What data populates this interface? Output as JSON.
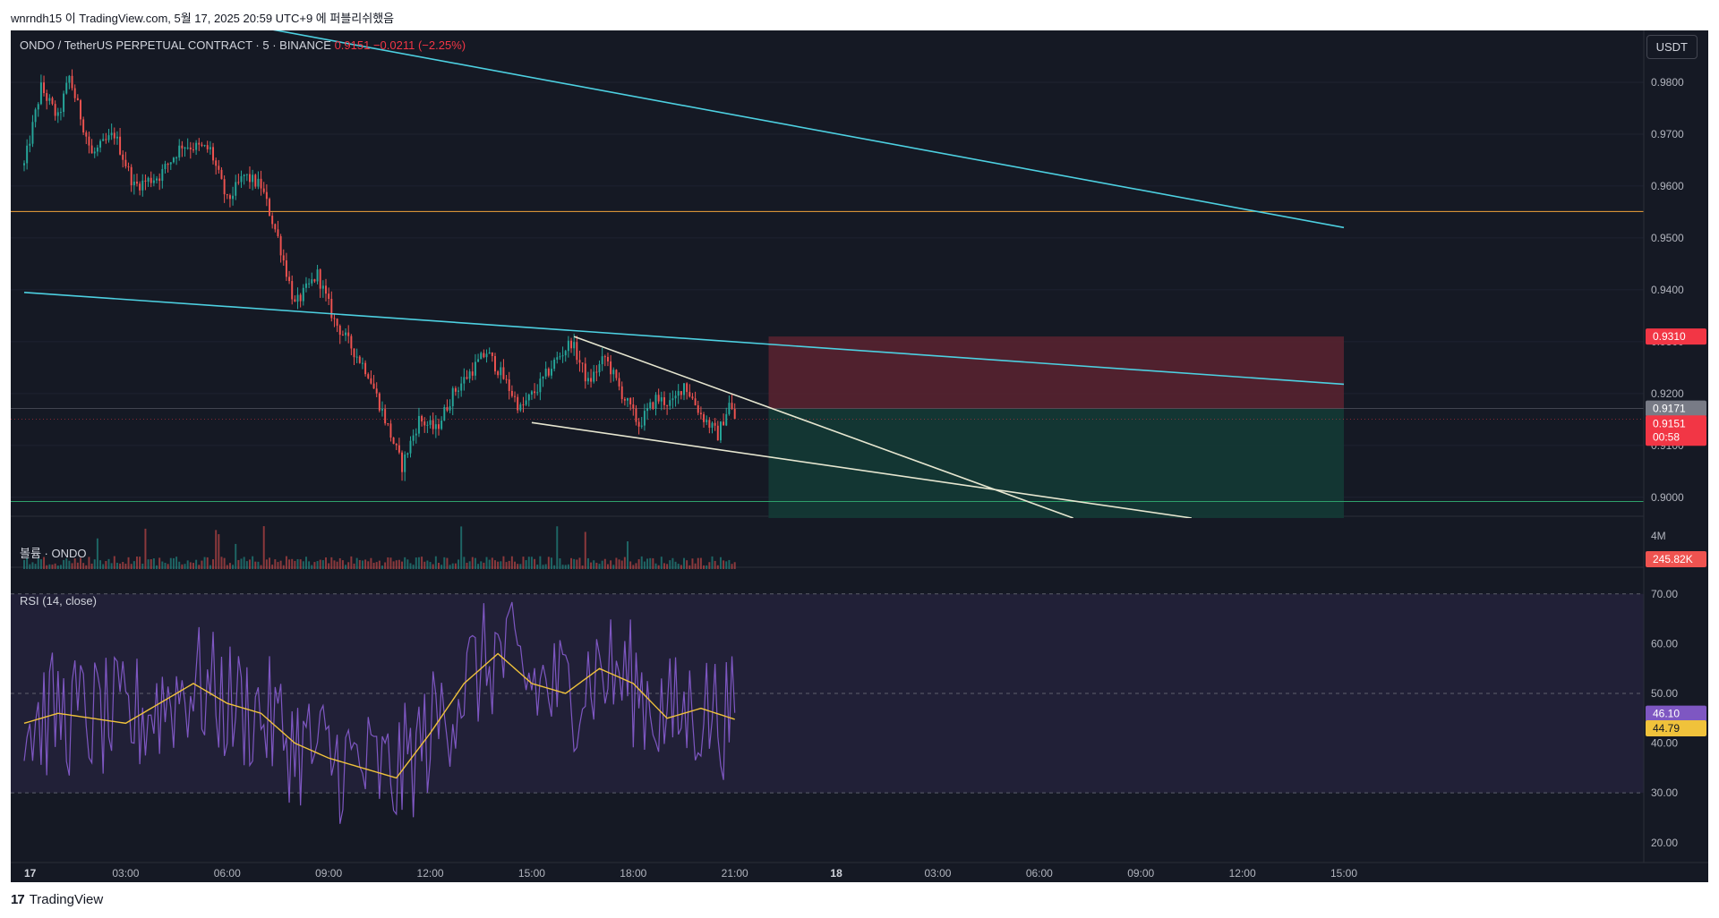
{
  "header": {
    "publisher_line": "wnrndh15 이 TradingView.com, 5월 17, 2025 20:59 UTC+9 에 퍼블리쉬했음"
  },
  "legend": {
    "symbol": "ONDO / TetherUS PERPETUAL CONTRACT · 5 · BINANCE",
    "last": "0.9151",
    "change": "−0.0211 (−2.25%)"
  },
  "unit_button": "USDT",
  "volume_pane": {
    "label": "볼륨 · ONDO",
    "scale_label": "4M",
    "current_badge": "245.82K"
  },
  "rsi_pane": {
    "label": "RSI (14, close)",
    "rsi_badge": "46.10",
    "ma_badge": "44.79"
  },
  "footer": {
    "brand_mark": "17",
    "brand": "TradingView"
  },
  "colors": {
    "background": "#151924",
    "up": "#26a69a",
    "down": "#ef5350",
    "trendline_cyan": "#4dd0e1",
    "channel_white": "#e6e6d0",
    "support_orange": "#f2a33a",
    "target_green": "#2ea06b",
    "stop_zone": "#5a2330",
    "target_zone": "#133a35",
    "rsi_line": "#7e57c2",
    "rsi_ma": "#f0c23b"
  },
  "chart_data": {
    "type": "candlestick",
    "timeframe": "5",
    "symbol": "ONDO/USDT PERP",
    "x_ticks": [
      "17",
      "03:00",
      "06:00",
      "09:00",
      "12:00",
      "15:00",
      "18:00",
      "21:00",
      "18",
      "03:00",
      "06:00",
      "09:00",
      "12:00",
      "15:00"
    ],
    "y_ticks": [
      "0.9000",
      "0.9100",
      "0.9200",
      "0.9300",
      "0.9400",
      "0.9500",
      "0.9600",
      "0.9700",
      "0.9800"
    ],
    "ylim": [
      0.896,
      0.99
    ],
    "price_path": [
      [
        "17 00:00",
        0.964
      ],
      [
        "17 00:30",
        0.979
      ],
      [
        "17 01:00",
        0.973
      ],
      [
        "17 01:20",
        0.981
      ],
      [
        "17 02:00",
        0.966
      ],
      [
        "17 02:40",
        0.97
      ],
      [
        "17 03:15",
        0.96
      ],
      [
        "17 04:00",
        0.962
      ],
      [
        "17 04:40",
        0.968
      ],
      [
        "17 05:30",
        0.967
      ],
      [
        "17 06:00",
        0.957
      ],
      [
        "17 06:30",
        0.962
      ],
      [
        "17 07:00",
        0.96
      ],
      [
        "17 07:30",
        0.95
      ],
      [
        "17 08:00",
        0.937
      ],
      [
        "17 08:40",
        0.943
      ],
      [
        "17 09:10",
        0.934
      ],
      [
        "17 09:40",
        0.929
      ],
      [
        "17 10:10",
        0.924
      ],
      [
        "17 10:40",
        0.915
      ],
      [
        "17 11:10",
        0.906
      ],
      [
        "17 11:40",
        0.915
      ],
      [
        "17 12:10",
        0.913
      ],
      [
        "17 12:40",
        0.92
      ],
      [
        "17 13:10",
        0.924
      ],
      [
        "17 13:40",
        0.928
      ],
      [
        "17 14:10",
        0.923
      ],
      [
        "17 14:40",
        0.917
      ],
      [
        "17 15:10",
        0.921
      ],
      [
        "17 15:40",
        0.926
      ],
      [
        "17 16:10",
        0.93
      ],
      [
        "17 16:40",
        0.922
      ],
      [
        "17 17:10",
        0.927
      ],
      [
        "17 17:40",
        0.92
      ],
      [
        "17 18:10",
        0.914
      ],
      [
        "17 18:40",
        0.919
      ],
      [
        "17 19:10",
        0.918
      ],
      [
        "17 19:30",
        0.922
      ],
      [
        "17 20:00",
        0.916
      ],
      [
        "17 20:30",
        0.912
      ],
      [
        "17 20:50",
        0.918
      ],
      [
        "17 21:00",
        0.9151
      ]
    ],
    "last_price": 0.9151,
    "price_badges": [
      {
        "label": "0.9310",
        "value": 0.931,
        "color": "#f23645"
      },
      {
        "label": "0.9171",
        "value": 0.9171,
        "color": "#787b86"
      },
      {
        "label": "0.9151",
        "value": 0.9151,
        "color": "#f23645",
        "sub": "00:58"
      }
    ],
    "horizontal_lines": [
      {
        "value": 0.9551,
        "color": "#f2a33a"
      },
      {
        "value": 0.8992,
        "color": "#2ea06b"
      }
    ],
    "trendlines": [
      {
        "from": [
          "17 00:00",
          0.999
        ],
        "to": [
          "18 15:00",
          0.952
        ],
        "color": "#4dd0e1"
      },
      {
        "from": [
          "17 00:00",
          0.9395
        ],
        "to": [
          "18 15:00",
          0.9218
        ],
        "color": "#4dd0e1"
      },
      {
        "from": [
          "17 16:15",
          0.931
        ],
        "to": [
          "18 07:00",
          0.896
        ],
        "color": "#e6e6d0"
      },
      {
        "from": [
          "17 15:00",
          0.9144
        ],
        "to": [
          "18 10:30",
          0.896
        ],
        "color": "#e6e6d0"
      }
    ],
    "position_tool": {
      "entry": 0.9171,
      "stop": 0.931,
      "target": 0.896,
      "start": "17 22:00",
      "end": "18 15:00"
    },
    "volume": {
      "scale_max_label": "4M",
      "last": "245.82K"
    },
    "rsi": {
      "period": 14,
      "levels": [
        70,
        50,
        30
      ],
      "y_ticks": [
        "20.00",
        "30.00",
        "40.00",
        "50.00",
        "60.00",
        "70.00"
      ],
      "ylim": [
        16,
        75
      ],
      "rsi_last": 46.1,
      "ma_last": 44.79,
      "ma_path": [
        [
          "17 00:00",
          44
        ],
        [
          "17 01:00",
          46
        ],
        [
          "17 02:00",
          45
        ],
        [
          "17 03:00",
          44
        ],
        [
          "17 04:00",
          48
        ],
        [
          "17 05:00",
          52
        ],
        [
          "17 06:00",
          48
        ],
        [
          "17 07:00",
          46
        ],
        [
          "17 08:00",
          40
        ],
        [
          "17 09:00",
          37
        ],
        [
          "17 10:00",
          35
        ],
        [
          "17 11:00",
          33
        ],
        [
          "17 12:00",
          42
        ],
        [
          "17 13:00",
          52
        ],
        [
          "17 14:00",
          58
        ],
        [
          "17 15:00",
          52
        ],
        [
          "17 16:00",
          50
        ],
        [
          "17 17:00",
          55
        ],
        [
          "17 18:00",
          52
        ],
        [
          "17 19:00",
          45
        ],
        [
          "17 20:00",
          47
        ],
        [
          "17 21:00",
          44.79
        ]
      ]
    }
  }
}
